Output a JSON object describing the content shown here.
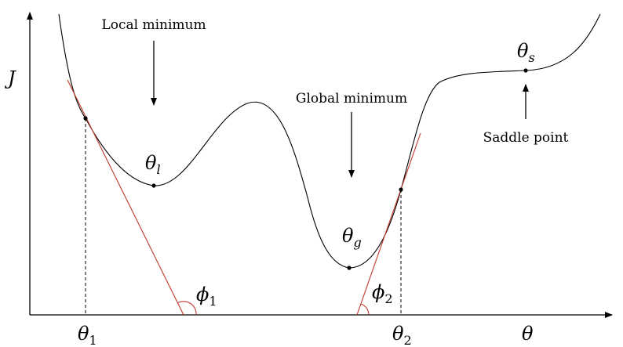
{
  "diagram": {
    "axis": {
      "y_label": "J",
      "x_label": "θ"
    },
    "annotations": {
      "local_minimum": "Local minimum",
      "global_minimum": "Global minimum",
      "saddle_point": "Saddle point"
    },
    "points": {
      "theta_l": {
        "base": "θ",
        "sub": "l"
      },
      "theta_g": {
        "base": "θ",
        "sub": "g"
      },
      "theta_s": {
        "base": "θ",
        "sub": "s"
      }
    },
    "ticks": {
      "theta_1": {
        "base": "θ",
        "sub": "1"
      },
      "theta_2": {
        "base": "θ",
        "sub": "2"
      }
    },
    "angles": {
      "phi_1": {
        "base": "ϕ",
        "sub": "1"
      },
      "phi_2": {
        "base": "ϕ",
        "sub": "2"
      }
    },
    "colors": {
      "curve": "#000000",
      "tangent": "#c0392b"
    }
  }
}
